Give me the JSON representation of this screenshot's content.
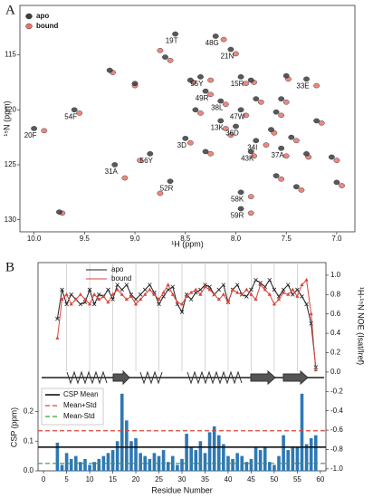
{
  "chart_data": [
    {
      "type": "scatter",
      "panel": "A",
      "xlabel": "¹H (ppm)",
      "ylabel": "¹⁵N (ppm)",
      "xlim": [
        10.14,
        6.82
      ],
      "ylim": [
        110.5,
        131.1
      ],
      "yaxis_inverted": true,
      "xticks": [
        {
          "value": 10.0,
          "label": "10.0"
        },
        9.5,
        {
          "value": 9.0,
          "label": "9.0"
        },
        8.5,
        {
          "value": 8.0,
          "label": "8.0"
        },
        7.5,
        {
          "value": 7.0,
          "label": "7.0"
        }
      ],
      "yticks": [
        115,
        120,
        125,
        130
      ],
      "legend": "upper left",
      "series": [
        {
          "name": "bound",
          "color": "#e8736c",
          "x": [
            8.12,
            8.0,
            8.75,
            8.25,
            7.9,
            7.2,
            8.25,
            8.1,
            7.9,
            8.1,
            8.05,
            9.55,
            9.9,
            8.45,
            7.7,
            7.5,
            8.95,
            9.1,
            7.82,
            8.75,
            7.85,
            7.85,
            9.72,
            9.22,
            9.0,
            8.42,
            7.82,
            7.48,
            8.35,
            7.55,
            7.5,
            7.75,
            7.15,
            7.62,
            7.28,
            7.0,
            7.55,
            7.35,
            6.95,
            8.25,
            7.4,
            8.65
          ],
          "values": [
            113.6,
            114.9,
            114.6,
            117.3,
            117.6,
            117.8,
            118.6,
            119.5,
            120.5,
            121.7,
            122.3,
            120.3,
            121.9,
            123.0,
            123.2,
            124.2,
            124.6,
            126.2,
            124.2,
            127.6,
            127.9,
            129.4,
            129.4,
            116.6,
            117.8,
            117.5,
            117.5,
            117.2,
            120.3,
            120.5,
            119.3,
            119.3,
            121.2,
            122.1,
            124.3,
            124.6,
            126.3,
            127.3,
            126.9,
            124.0,
            122.8,
            115.5
          ]
        },
        {
          "name": "apo",
          "color": "#3c3c3c",
          "x": [
            8.2,
            8.05,
            8.6,
            8.35,
            7.95,
            7.3,
            8.3,
            8.15,
            7.95,
            8.15,
            8.0,
            9.6,
            10.0,
            8.5,
            7.8,
            7.55,
            8.85,
            9.2,
            7.85,
            8.65,
            7.95,
            7.95,
            9.75,
            9.25,
            9.0,
            8.45,
            7.85,
            7.5,
            8.4,
            7.6,
            7.55,
            7.8,
            7.2,
            7.65,
            7.3,
            7.05,
            7.6,
            7.4,
            7.0,
            8.3,
            7.45,
            8.7
          ],
          "values": [
            113.3,
            114.5,
            113.1,
            117.0,
            117.0,
            117.2,
            118.3,
            119.2,
            120.0,
            121.0,
            121.5,
            120.0,
            121.7,
            122.6,
            122.8,
            123.5,
            124.0,
            125.0,
            123.8,
            126.5,
            127.5,
            129.0,
            129.3,
            116.4,
            117.6,
            117.3,
            117.3,
            116.9,
            120.0,
            120.2,
            119.0,
            119.0,
            121.0,
            121.8,
            124.0,
            124.3,
            126.0,
            127.0,
            126.6,
            123.8,
            122.5,
            115.2
          ],
          "labels": [
            "48G",
            "21N",
            "19T",
            "55Y",
            "15R",
            "33E",
            "49R",
            "38L",
            "47W",
            "13K",
            "36D",
            "54F",
            "20F",
            "3D",
            "34I",
            "37A",
            "56Y",
            "31A",
            "43K",
            "52R",
            "58K",
            "59R",
            null,
            null,
            null,
            null,
            null,
            null,
            null,
            null,
            null,
            null,
            null,
            null,
            null,
            null,
            null,
            null,
            null,
            null,
            null,
            null
          ]
        }
      ]
    },
    {
      "type": "line",
      "panel": "B",
      "ylabel": "¹H-¹⁵N NOE (Isat/Iref)",
      "xlim": [
        -1.2,
        61.2
      ],
      "ylim": [
        -1.02,
        1.13
      ],
      "yticks": [
        {
          "value": -1.0,
          "label": "-1.0"
        },
        {
          "value": -0.8,
          "label": "-0.8"
        },
        {
          "value": -0.6,
          "label": "-0.6"
        },
        {
          "value": -0.4,
          "label": "-0.4"
        },
        {
          "value": -0.2,
          "label": "-0.2"
        },
        {
          "value": 0.0,
          "label": "0.0"
        },
        {
          "value": 0.2,
          "label": "0.2"
        },
        {
          "value": 0.4,
          "label": "0.4"
        },
        {
          "value": 0.6,
          "label": "0.6"
        },
        {
          "value": 0.8,
          "label": "0.8"
        },
        {
          "value": 1.0,
          "label": "1.0"
        }
      ],
      "xgrid": [
        5,
        10,
        15,
        20,
        25,
        30,
        35,
        40,
        45,
        50,
        55
      ],
      "grid": true,
      "legend": "upper center",
      "x": [
        3,
        4,
        5,
        6,
        7,
        8,
        9,
        10,
        11,
        12,
        13,
        14,
        15,
        16,
        17,
        18,
        19,
        20,
        21,
        22,
        23,
        24,
        25,
        26,
        27,
        28,
        29,
        30,
        31,
        32,
        33,
        34,
        35,
        36,
        37,
        38,
        39,
        40,
        41,
        42,
        43,
        44,
        45,
        46,
        47,
        48,
        49,
        50,
        51,
        52,
        53,
        54,
        55,
        56,
        57,
        58,
        59
      ],
      "series": [
        {
          "name": "apo",
          "color": "#222222",
          "marker": "x",
          "values": [
            0.55,
            0.85,
            0.7,
            0.8,
            0.75,
            0.7,
            0.72,
            0.85,
            0.7,
            0.8,
            0.78,
            0.85,
            0.75,
            0.9,
            0.85,
            0.9,
            0.8,
            0.75,
            0.8,
            0.85,
            0.9,
            0.82,
            0.7,
            0.78,
            0.85,
            0.88,
            0.7,
            0.62,
            0.8,
            0.75,
            0.82,
            0.85,
            0.9,
            0.88,
            0.8,
            0.85,
            0.9,
            0.72,
            0.85,
            0.9,
            0.8,
            0.78,
            0.85,
            0.95,
            0.92,
            0.88,
            0.95,
            0.85,
            0.78,
            0.85,
            0.9,
            0.8,
            0.85,
            0.78,
            0.7,
            0.5,
            0.05
          ]
        },
        {
          "name": "bound",
          "color": "#d9453a",
          "marker": "star",
          "values": [
            0.35,
            0.75,
            0.8,
            0.7,
            0.75,
            0.8,
            0.75,
            0.7,
            0.8,
            0.75,
            0.78,
            0.72,
            0.8,
            0.85,
            0.8,
            0.75,
            0.78,
            0.7,
            0.75,
            0.8,
            0.85,
            0.8,
            0.75,
            0.82,
            0.9,
            0.8,
            0.72,
            0.7,
            0.78,
            0.82,
            0.85,
            0.8,
            0.88,
            0.85,
            0.8,
            0.75,
            0.8,
            0.72,
            0.85,
            0.82,
            0.8,
            0.85,
            0.8,
            0.75,
            0.9,
            0.85,
            0.8,
            0.7,
            0.75,
            0.82,
            0.8,
            0.85,
            0.78,
            0.9,
            0.95,
            0.6,
            0.02
          ]
        }
      ]
    },
    {
      "type": "bar",
      "xlabel": "Residue Number",
      "ylabel": "CSP (ppm)",
      "color": "#2e78b5",
      "xlim": [
        -1.2,
        61.2
      ],
      "ylim": [
        0,
        0.29
      ],
      "xticks": [
        0,
        5,
        10,
        15,
        20,
        25,
        30,
        35,
        40,
        45,
        50,
        55,
        60
      ],
      "yticks": [
        {
          "value": 0.0,
          "label": "0.0"
        },
        0.1,
        0.2
      ],
      "legend": "upper left",
      "x": [
        3,
        4,
        5,
        6,
        7,
        8,
        9,
        10,
        11,
        12,
        13,
        14,
        15,
        16,
        17,
        18,
        19,
        20,
        21,
        22,
        23,
        24,
        25,
        26,
        27,
        28,
        29,
        30,
        31,
        32,
        33,
        34,
        35,
        36,
        37,
        38,
        39,
        40,
        41,
        42,
        43,
        44,
        45,
        46,
        47,
        48,
        49,
        50,
        51,
        52,
        53,
        54,
        55,
        56,
        57,
        58,
        59
      ],
      "values": [
        0.095,
        0.02,
        0.06,
        0.04,
        0.05,
        0.03,
        0.04,
        0.02,
        0.03,
        0.04,
        0.05,
        0.06,
        0.07,
        0.1,
        0.26,
        0.17,
        0.1,
        0.11,
        0.06,
        0.05,
        0.04,
        0.06,
        0.05,
        0.07,
        0.03,
        0.05,
        0.02,
        0.04,
        0.125,
        0.08,
        0.07,
        0.1,
        0.06,
        0.13,
        0.15,
        0.12,
        0.09,
        0.05,
        0.04,
        0.06,
        0.05,
        0.03,
        0.04,
        0.08,
        0.07,
        0.08,
        0.03,
        0.02,
        0.05,
        0.12,
        0.07,
        0.08,
        0.08,
        0.26,
        0.09,
        0.11,
        0.12
      ],
      "hlines": [
        {
          "name": "CSP Mean",
          "value": 0.08,
          "color": "#111111",
          "dash": false
        },
        {
          "name": "Mean+Std",
          "value": 0.135,
          "color": "#d9453a",
          "dash": true
        },
        {
          "name": "Mean-Std",
          "value": 0.025,
          "color": "#3a9a3a",
          "dash": true
        }
      ]
    }
  ]
}
